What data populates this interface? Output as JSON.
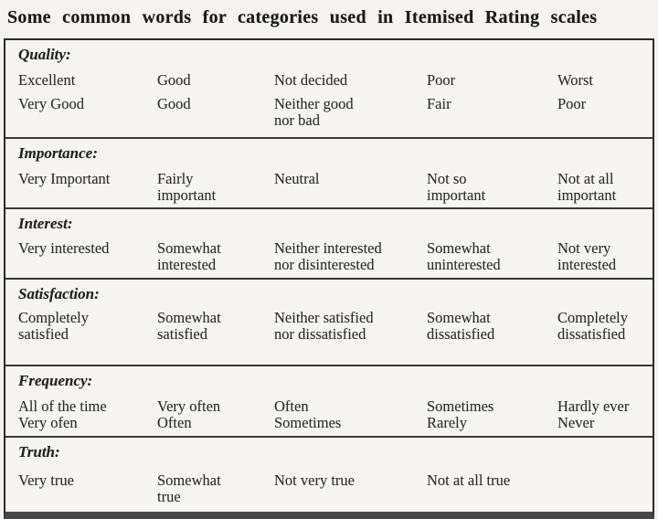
{
  "title": "Some common words for categories used in Itemised Rating scales",
  "table": {
    "sections": [
      {
        "label": "Quality:",
        "rows": [
          [
            "Excellent",
            "Good",
            "Not decided",
            "Poor",
            "Worst"
          ],
          [
            "Very Good",
            "Good",
            "Neither good\nnor bad",
            "Fair",
            "Poor"
          ]
        ]
      },
      {
        "label": "Importance:",
        "rows": [
          [
            "Very Important",
            "Fairly\nimportant",
            "Neutral",
            "Not so\nimportant",
            "Not at all\nimportant"
          ]
        ]
      },
      {
        "label": "Interest:",
        "rows": [
          [
            "Very interested",
            "Somewhat\ninterested",
            "Neither interested\nnor disinterested",
            "Somewhat\nuninterested",
            "Not very\ninterested"
          ]
        ]
      },
      {
        "label": "Satisfaction:",
        "rows": [
          [
            "Completely\nsatisfied",
            "Somewhat\nsatisfied",
            "Neither satisfied\nnor dissatisfied",
            "Somewhat\ndissatisfied",
            "Completely\ndissatisfied"
          ]
        ]
      },
      {
        "label": "Frequency:",
        "rows": [
          [
            "All of the time",
            "Very often",
            "Often",
            "Sometimes",
            "Hardly ever"
          ],
          [
            "Very ofen",
            "Often",
            "Sometimes",
            "Rarely",
            "Never"
          ]
        ]
      },
      {
        "label": "Truth:",
        "rows": [
          [
            "Very true",
            "Somewhat\ntrue",
            "Not very true",
            "Not at all true",
            ""
          ]
        ]
      }
    ]
  }
}
